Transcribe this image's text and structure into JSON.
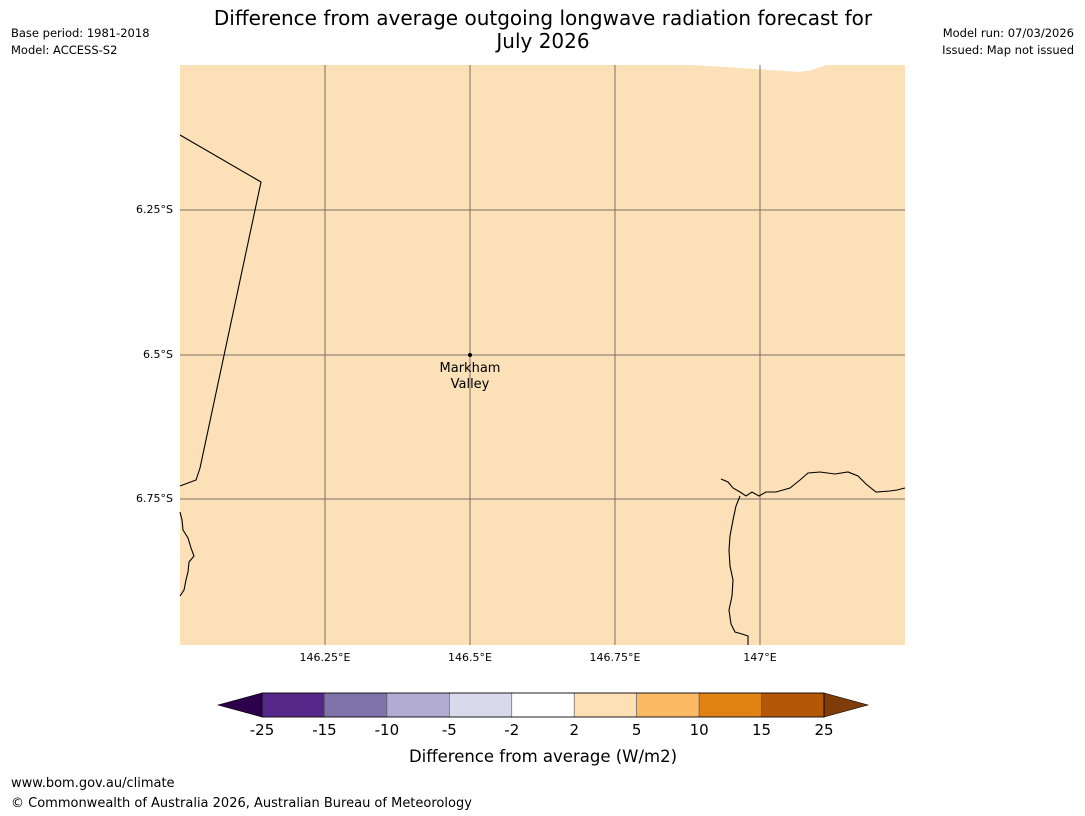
{
  "title": {
    "line1": "Difference from average outgoing longwave radiation forecast for",
    "line2": "July 2026"
  },
  "meta_left": {
    "base_period": "Base period: 1981-2018",
    "model": "Model: ACCESS-S2"
  },
  "meta_right": {
    "model_run": "Model run: 07/03/2026",
    "issued": "Issued: Map not issued"
  },
  "map": {
    "fill_color": "#fce0b8",
    "lat_ticks": [
      "6.25°S",
      "6.5°S",
      "6.75°S"
    ],
    "lon_ticks": [
      "146.25°E",
      "146.5°E",
      "146.75°E",
      "147°E"
    ],
    "place": {
      "name_line1": "Markham",
      "name_line2": "Valley"
    }
  },
  "colorbar": {
    "label": "Difference from average (W/m2)",
    "ticks": [
      "-25",
      "-15",
      "-10",
      "-5",
      "-2",
      "2",
      "5",
      "10",
      "15",
      "25"
    ],
    "colors": {
      "below_min": "#2d004b",
      "bins": [
        "#542788",
        "#8073ac",
        "#b2abd2",
        "#d8daeb",
        "#ffffff",
        "#fee0b6",
        "#fdb863",
        "#e08214",
        "#b35806"
      ],
      "above_max": "#7f3b08"
    }
  },
  "footer": {
    "url": "www.bom.gov.au/climate",
    "copyright": "© Commonwealth of Australia 2026, Australian Bureau of Meteorology"
  }
}
